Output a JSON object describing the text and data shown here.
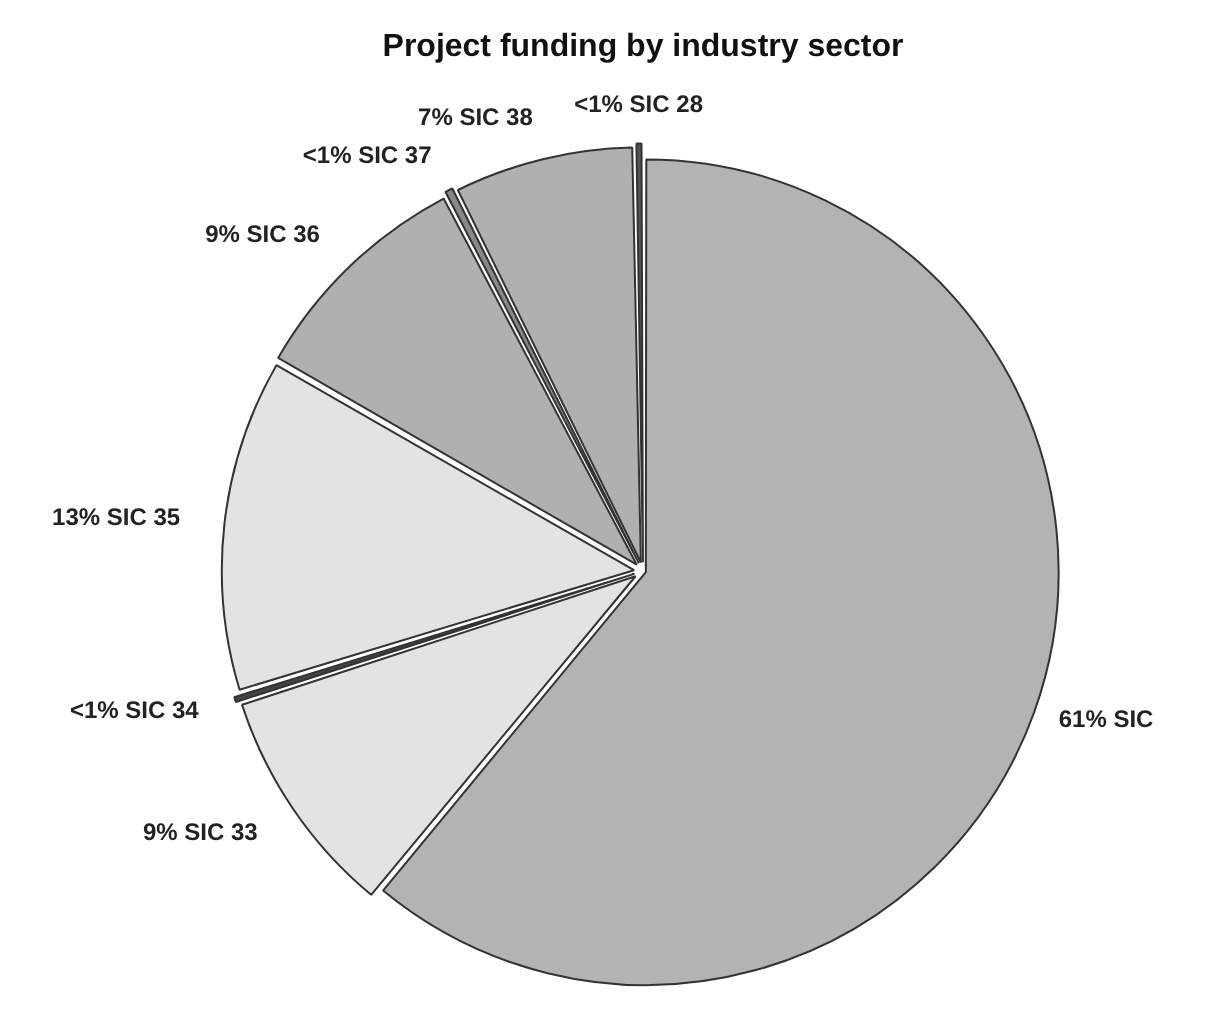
{
  "chart_data": {
    "type": "pie",
    "title": "Project funding by industry sector",
    "categories": [
      "61% SIC",
      "9% SIC 33",
      "<1% SIC 34",
      "13% SIC 35",
      "9% SIC 36",
      "<1% SIC 37",
      "7% SIC 38",
      "<1% SIC 28"
    ],
    "values": [
      61,
      9,
      0.3,
      13,
      9,
      0.4,
      7,
      0.3
    ],
    "colors": [
      "#b3b3b3",
      "#e3e3e3",
      "#444444",
      "#e3e3e3",
      "#b0b0b0",
      "#888888",
      "#b0b0b0",
      "#555555"
    ],
    "legend": false
  }
}
